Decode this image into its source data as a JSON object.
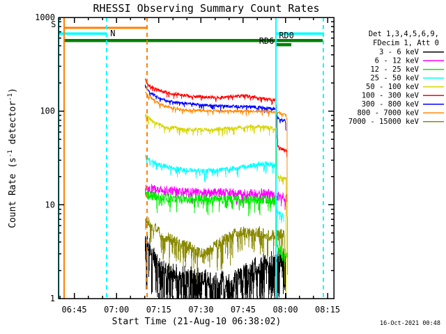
{
  "footer": {
    "generated": "16-Oct-2021 00:48"
  },
  "chart_data": {
    "type": "line",
    "title": "RHESSI Observing Summary Count Rates",
    "xlabel": "Start Time (21-Aug-10 06:38:02)",
    "ylabel": "Count Rate (s-1 detector-1)",
    "ylabel_parts": [
      [
        "t",
        "Count Rate (s"
      ],
      [
        "sup",
        "-1"
      ],
      [
        "t",
        " detector"
      ],
      [
        "sup",
        "-1"
      ],
      [
        "t",
        ")"
      ]
    ],
    "x_unit": "minutes after 06:30 UT",
    "grid": false,
    "legend_position": "right-outside",
    "axes": {
      "x_min": 9.4,
      "x_max": 107.2,
      "y_log_min": 0,
      "y_log_max": 3,
      "y_scale": "log",
      "x_major_ticks": [
        {
          "t": 15,
          "label": "06:45"
        },
        {
          "t": 30,
          "label": "07:00"
        },
        {
          "t": 45,
          "label": "07:15"
        },
        {
          "t": 60,
          "label": "07:30"
        },
        {
          "t": 75,
          "label": "07:45"
        },
        {
          "t": 90,
          "label": "08:00"
        },
        {
          "t": 105,
          "label": "08:15"
        }
      ],
      "x_minor_step": 5,
      "y_major_ticks": [
        {
          "v": 1,
          "label": "1"
        },
        {
          "v": 10,
          "label": "10"
        },
        {
          "v": 100,
          "label": "100"
        },
        {
          "v": 1000,
          "label": "1000"
        }
      ]
    },
    "legend": {
      "header_lines": [
        "Det 1,3,4,5,6,9,",
        "FDecim 1, Att 0"
      ]
    },
    "series": [
      {
        "name": "3-6keV",
        "label": "3 - 6 keV",
        "color": "#000000",
        "noise_dex": 0.1,
        "spike_prob": 0.5,
        "spike_dex": 0.5,
        "points": [
          [
            40.2,
            3.9
          ],
          [
            42,
            3.6
          ],
          [
            43,
            2.95
          ],
          [
            45,
            2.7
          ],
          [
            46.5,
            2.05
          ],
          [
            50,
            1.9
          ],
          [
            54,
            1.85
          ],
          [
            58,
            1.8
          ],
          [
            62,
            1.72
          ],
          [
            66,
            1.65
          ],
          [
            70,
            1.62
          ],
          [
            73,
            1.7
          ],
          [
            76,
            1.95
          ],
          [
            79,
            2.2
          ],
          [
            82,
            2.5
          ],
          [
            84.5,
            2.65
          ],
          [
            87,
            2.7
          ],
          [
            89,
            2.6
          ],
          [
            90.2,
            2.5
          ],
          [
            90.3,
            1.1
          ]
        ]
      },
      {
        "name": "6-12keV",
        "label": "6 - 12 keV",
        "color": "#ff00ff",
        "noise_dex": 0.05,
        "spike_prob": 0.12,
        "spike_dex": 0.1,
        "points": [
          [
            40.2,
            15.8
          ],
          [
            42,
            15.0
          ],
          [
            45,
            14.4
          ],
          [
            49,
            14.0
          ],
          [
            54,
            13.7
          ],
          [
            60,
            13.5
          ],
          [
            66,
            13.5
          ],
          [
            72,
            13.4
          ],
          [
            78,
            13.4
          ],
          [
            83,
            13.2
          ],
          [
            86.6,
            13.0
          ],
          [
            87.2,
            12.5
          ],
          [
            89,
            12.2
          ],
          [
            90.6,
            11.8
          ],
          [
            90.7,
            10.5
          ]
        ]
      },
      {
        "name": "12-25keV",
        "label": "12 - 25 keV",
        "color": "#00ee00",
        "noise_dex": 0.05,
        "spike_prob": 0.15,
        "spike_dex": 0.15,
        "points": [
          [
            40.2,
            13.2
          ],
          [
            42,
            12.6
          ],
          [
            45,
            12.2
          ],
          [
            49,
            11.9
          ],
          [
            54,
            11.7
          ],
          [
            60,
            11.6
          ],
          [
            66,
            11.5
          ],
          [
            72,
            11.5
          ],
          [
            78,
            11.4
          ],
          [
            83,
            11.3
          ],
          [
            86.7,
            11.2
          ],
          [
            87.1,
            3.35
          ],
          [
            89,
            3.25
          ],
          [
            90.6,
            3.1
          ]
        ]
      },
      {
        "name": "25-50keV",
        "label": "25 - 50 keV",
        "color": "#00ffff",
        "noise_dex": 0.025,
        "spike_prob": 0.12,
        "spike_dex": 0.1,
        "points": [
          [
            40.2,
            34
          ],
          [
            41.5,
            31
          ],
          [
            43.5,
            28.5
          ],
          [
            46,
            26.5
          ],
          [
            49,
            25
          ],
          [
            52,
            24
          ],
          [
            56,
            23.3
          ],
          [
            60,
            23
          ],
          [
            64,
            23.2
          ],
          [
            68,
            23.8
          ],
          [
            72,
            24.6
          ],
          [
            76,
            25.6
          ],
          [
            80,
            27
          ],
          [
            83,
            27.6
          ],
          [
            85,
            27.2
          ],
          [
            86.7,
            26.5
          ],
          [
            86.9,
            8.6
          ],
          [
            88,
            8.2
          ],
          [
            89.3,
            7.6
          ],
          [
            89.4,
            6.8
          ]
        ]
      },
      {
        "name": "50-100keV",
        "label": "50 - 100 keV",
        "color": "#d6d600",
        "noise_dex": 0.02,
        "spike_prob": 0.15,
        "spike_dex": 0.08,
        "points": [
          [
            40.2,
            95
          ],
          [
            41.2,
            86
          ],
          [
            43,
            77
          ],
          [
            45.5,
            71
          ],
          [
            48.5,
            67.5
          ],
          [
            52,
            65.5
          ],
          [
            56,
            64
          ],
          [
            60,
            63.5
          ],
          [
            64,
            64
          ],
          [
            68,
            65
          ],
          [
            72,
            66.5
          ],
          [
            75,
            68
          ],
          [
            78,
            69.5
          ],
          [
            81,
            68.5
          ],
          [
            84,
            66.5
          ],
          [
            86.8,
            64
          ],
          [
            87.2,
            20
          ],
          [
            88.5,
            19.5
          ],
          [
            90.2,
            19
          ],
          [
            90.3,
            1.2
          ]
        ]
      },
      {
        "name": "100-300keV",
        "label": "100 - 300 keV",
        "color": "#ff0000",
        "noise_dex": 0.015,
        "spike_prob": 0.12,
        "spike_dex": 0.05,
        "points": [
          [
            40.2,
            215
          ],
          [
            41,
            196
          ],
          [
            42.5,
            180
          ],
          [
            44.5,
            169
          ],
          [
            47,
            160
          ],
          [
            50,
            154
          ],
          [
            54,
            148
          ],
          [
            58,
            144
          ],
          [
            62,
            141
          ],
          [
            66,
            140
          ],
          [
            69,
            141
          ],
          [
            72,
            144
          ],
          [
            75,
            146
          ],
          [
            78,
            143
          ],
          [
            81,
            138
          ],
          [
            84,
            134
          ],
          [
            86.8,
            131
          ],
          [
            87.3,
            42
          ],
          [
            88.5,
            40
          ],
          [
            90.5,
            38
          ],
          [
            90.6,
            25
          ]
        ]
      },
      {
        "name": "300-800keV",
        "label": "300 - 800 keV",
        "color": "#0000ff",
        "noise_dex": 0.015,
        "spike_prob": 0.12,
        "spike_dex": 0.05,
        "points": [
          [
            40.2,
            185
          ],
          [
            41,
            170
          ],
          [
            42.5,
            154
          ],
          [
            44.5,
            141
          ],
          [
            47,
            131
          ],
          [
            50,
            125
          ],
          [
            54,
            121
          ],
          [
            58,
            118
          ],
          [
            62,
            116
          ],
          [
            66,
            114
          ],
          [
            70,
            113
          ],
          [
            74,
            112
          ],
          [
            78,
            111
          ],
          [
            82,
            109
          ],
          [
            86.8,
            106
          ],
          [
            87.2,
            85
          ],
          [
            88.5,
            82
          ],
          [
            90.1,
            79
          ],
          [
            90.2,
            60
          ]
        ]
      },
      {
        "name": "800-7000keV",
        "label": "800 - 7000 keV",
        "color": "#ff8800",
        "noise_dex": 0.013,
        "spike_prob": 0.12,
        "spike_dex": 0.05,
        "points": [
          [
            40.2,
            160
          ],
          [
            41,
            149
          ],
          [
            42.5,
            136
          ],
          [
            44.5,
            124
          ],
          [
            47,
            114
          ],
          [
            50,
            108
          ],
          [
            54,
            104
          ],
          [
            58,
            102
          ],
          [
            62,
            101
          ],
          [
            66,
            100
          ],
          [
            70,
            100
          ],
          [
            75,
            100
          ],
          [
            80,
            100
          ],
          [
            84,
            99
          ],
          [
            87,
            97
          ],
          [
            88.5,
            94
          ],
          [
            90.3,
            90
          ],
          [
            90.6,
            86
          ],
          [
            90.7,
            2
          ]
        ]
      },
      {
        "name": "7000-15000keV",
        "label": "7000 - 15000 keV",
        "color": "#8a8a00",
        "noise_dex": 0.06,
        "spike_prob": 0.22,
        "spike_dex": 0.3,
        "points": [
          [
            40.2,
            7.4
          ],
          [
            41.5,
            6.5
          ],
          [
            43.5,
            5.6
          ],
          [
            46,
            4.9
          ],
          [
            48.5,
            4.4
          ],
          [
            51,
            4.05
          ],
          [
            54,
            3.8
          ],
          [
            56.5,
            3.5
          ],
          [
            58.5,
            3.15
          ],
          [
            60.5,
            3.0
          ],
          [
            62.5,
            3.15
          ],
          [
            65,
            3.6
          ],
          [
            68,
            4.2
          ],
          [
            70.5,
            4.8
          ],
          [
            73,
            5.15
          ],
          [
            75.5,
            5.1
          ],
          [
            78,
            5.0
          ],
          [
            80.5,
            5.2
          ],
          [
            83,
            4.9
          ],
          [
            85,
            4.7
          ],
          [
            87,
            4.7
          ],
          [
            88.5,
            4.85
          ],
          [
            89.6,
            4.7
          ],
          [
            89.8,
            1.3
          ]
        ]
      }
    ],
    "events": {
      "vlines": [
        {
          "name": "night-edge-line",
          "t": 9.4,
          "color": "#00ffff",
          "dash": false
        },
        {
          "name": "saa-start-line",
          "t": 11.4,
          "color": "#ff8000",
          "dash": false
        },
        {
          "name": "night-end-line",
          "t": 26.5,
          "color": "#00ffff",
          "dash": true
        },
        {
          "name": "saa-end-line",
          "t": 40.9,
          "color": "#ff8000",
          "dash": true
        },
        {
          "name": "night-start-line",
          "t": 86.6,
          "color": "#00ffff",
          "dash": false
        },
        {
          "name": "night-end-line-2",
          "t": 103.5,
          "color": "#00ffff",
          "dash": true
        }
      ],
      "flag_bars": [
        {
          "name": "saa-flag-bar",
          "t1": 11.4,
          "t2": 40.9,
          "v": 772,
          "color": "#ff8000",
          "lw": 3
        },
        {
          "name": "night-flag-bar",
          "t1": 9.4,
          "t2": 26.5,
          "v": 674,
          "color": "#00ffff",
          "lw": 3.5
        },
        {
          "name": "night-flag-bar-2",
          "t1": 86.6,
          "t2": 103.7,
          "v": 674,
          "color": "#00ffff",
          "lw": 3.5
        },
        {
          "name": "rd6-flag-bar",
          "t1": 11.4,
          "t2": 103.3,
          "v": 567,
          "color": "#008000",
          "lw": 4.5
        },
        {
          "name": "rd0-flag-bar",
          "t1": 86.8,
          "t2": 92.1,
          "v": 513,
          "color": "#008000",
          "lw": 4.5
        }
      ],
      "flag_labels": [
        {
          "name": "saa-flag-label",
          "text": "S",
          "t": 7.6,
          "v": 790,
          "color": "#ff8000",
          "anchor": "middle"
        },
        {
          "name": "night-flag-label",
          "text": "N",
          "t": 27.8,
          "v": 630,
          "color": "#00ffff",
          "anchor": "start"
        },
        {
          "name": "rd6-flag-label",
          "text": "RD6",
          "t": 86.0,
          "v": 520,
          "color": "#008000",
          "anchor": "end"
        },
        {
          "name": "rd0-flag-label",
          "text": "RD0",
          "t": 87.7,
          "v": 600,
          "color": "#008000",
          "anchor": "start"
        }
      ]
    }
  }
}
